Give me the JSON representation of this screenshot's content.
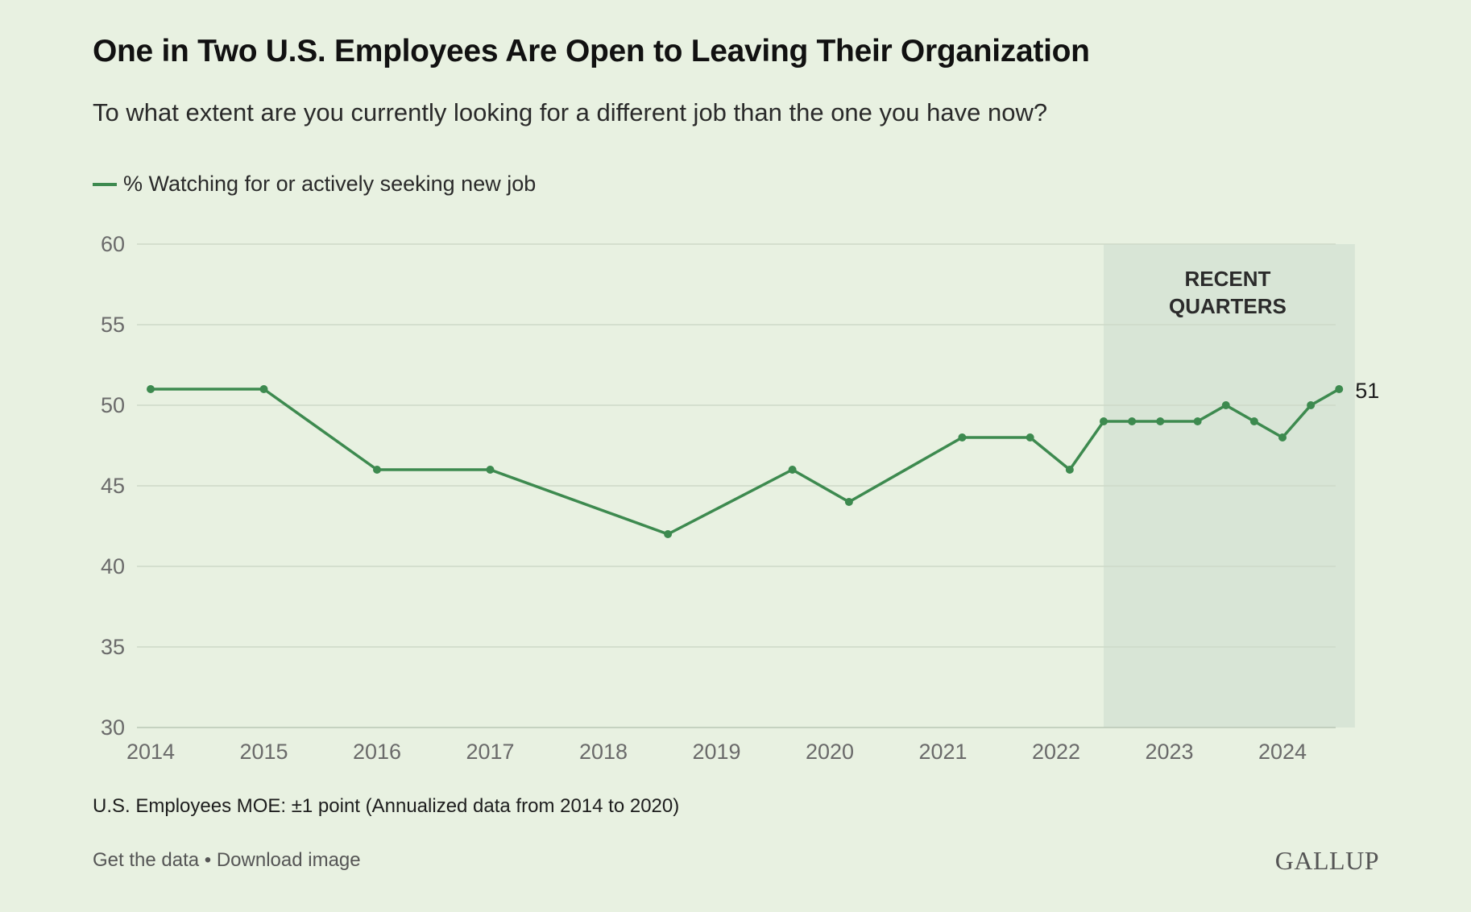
{
  "title": "One in Two U.S. Employees Are Open to Leaving Their Organization",
  "subtitle": "To what extent are you currently looking for a different job than the one you have now?",
  "legend": {
    "label": "% Watching for or actively seeking new job",
    "color": "#3d8a4f"
  },
  "footnote": "U.S. Employees MOE: ±1 point (Annualized data from 2014 to 2020)",
  "footer": {
    "get_data": "Get the data",
    "separator": "•",
    "download": "Download image"
  },
  "brand": "GALLUP",
  "chart_data": {
    "type": "line",
    "title": "One in Two U.S. Employees Are Open to Leaving Their Organization",
    "xlabel": "",
    "ylabel": "",
    "ylim": [
      30,
      60
    ],
    "yticks": [
      30,
      35,
      40,
      45,
      50,
      55,
      60
    ],
    "xlim": [
      2014,
      2024.64
    ],
    "xticks": [
      "2014",
      "2015",
      "2016",
      "2017",
      "2018",
      "2019",
      "2020",
      "2021",
      "2022",
      "2023",
      "2024"
    ],
    "grid": true,
    "shaded_region": {
      "label_line1": "RECENT",
      "label_line2": "QUARTERS",
      "x_start": 2022.42,
      "x_end": 2024.64
    },
    "series": [
      {
        "name": "% Watching for or actively seeking new job",
        "color": "#3d8a4f",
        "x": [
          2014.0,
          2015.0,
          2016.0,
          2017.0,
          2018.57,
          2019.67,
          2020.17,
          2021.17,
          2021.77,
          2022.12,
          2022.42,
          2022.67,
          2022.92,
          2023.25,
          2023.5,
          2023.75,
          2024.0,
          2024.25,
          2024.5
        ],
        "values": [
          51,
          51,
          46,
          46,
          42,
          46,
          44,
          48,
          48,
          46,
          49,
          49,
          49,
          49,
          50,
          49,
          48,
          50,
          51
        ]
      }
    ],
    "end_label": "51"
  }
}
